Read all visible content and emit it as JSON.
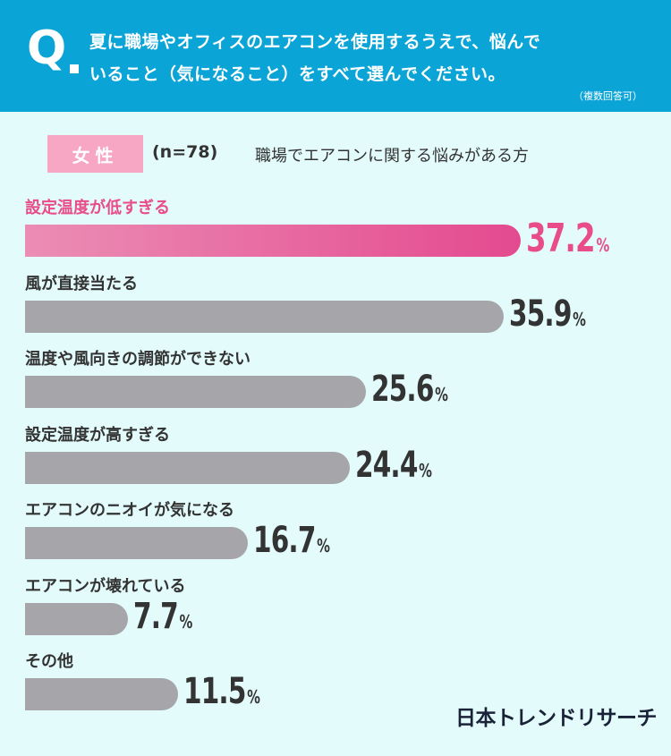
{
  "question": {
    "mark": "Q",
    "line1": "夏に職場やオフィスのエアコンを使用するうえで、悩んで",
    "line2": "いること（気になること）をすべて選んでください。",
    "note": "（複数回答可）"
  },
  "subtitle": {
    "badge": "女性",
    "n": "(n=78)",
    "description": "職場でエアコンに関する悩みがある方"
  },
  "chart_data": {
    "type": "bar",
    "orientation": "horizontal",
    "unit": "%",
    "categories": [
      "設定温度が低すぎる",
      "風が直接当たる",
      "温度や風向きの調節ができない",
      "設定温度が高すぎる",
      "エアコンのニオイが気になる",
      "エアコンが壊れている",
      "その他"
    ],
    "values": [
      37.2,
      35.9,
      25.6,
      24.4,
      16.7,
      7.7,
      11.5
    ],
    "value_labels": [
      "37.2",
      "35.9",
      "25.6",
      "24.4",
      "16.7",
      "7.7",
      "11.5"
    ],
    "highlight_index": 0,
    "colors": {
      "highlight": "#e84d8a",
      "bar": "#a6a6aa",
      "text": "#333333"
    },
    "xlim": [
      0,
      37.2
    ]
  },
  "logo": "日本トレンドリサーチ",
  "colors": {
    "header": "#0aa4d6",
    "background": "#e3fbfb",
    "badge": "#f7a6c4"
  }
}
